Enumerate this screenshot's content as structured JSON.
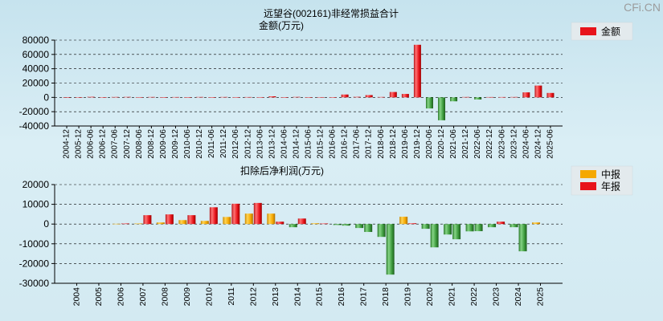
{
  "title": "远望谷(002161)非经常损益合计",
  "watermark": "CFi.CN",
  "chart_data": [
    {
      "type": "bar",
      "title": "金额(万元)",
      "ylim": [
        -40000,
        80000
      ],
      "yticks": [
        80000,
        60000,
        40000,
        20000,
        0,
        -20000,
        -40000
      ],
      "grid": true,
      "legend": "top-right",
      "negative_color": "#2e8b2e",
      "categories": [
        "2004-12",
        "2005-12",
        "2006-06",
        "2006-12",
        "2007-06",
        "2007-12",
        "2008-06",
        "2008-12",
        "2009-06",
        "2009-12",
        "2010-06",
        "2010-12",
        "2011-06",
        "2011-12",
        "2012-06",
        "2012-12",
        "2013-06",
        "2013-12",
        "2014-06",
        "2014-12",
        "2015-06",
        "2015-12",
        "2016-06",
        "2016-12",
        "2017-06",
        "2017-12",
        "2018-06",
        "2018-12",
        "2019-06",
        "2019-12",
        "2020-06",
        "2020-12",
        "2021-06",
        "2021-12",
        "2022-06",
        "2022-12",
        "2023-06",
        "2023-12",
        "2024-06",
        "2024-12",
        "2025-06"
      ],
      "series": [
        {
          "name": "金额",
          "color": "#e8131a",
          "values": [
            100,
            200,
            800,
            300,
            600,
            700,
            400,
            600,
            300,
            500,
            300,
            600,
            300,
            600,
            400,
            500,
            400,
            1500,
            300,
            700,
            300,
            400,
            300,
            4000,
            800,
            3200,
            600,
            7500,
            4800,
            73500,
            -15500,
            -32000,
            -5500,
            600,
            -3000,
            500,
            500,
            600,
            7000,
            16500,
            6200
          ]
        }
      ]
    },
    {
      "type": "bar",
      "title": "扣除后净利润(万元)",
      "ylim": [
        -30000,
        20000
      ],
      "yticks": [
        20000,
        10000,
        0,
        -10000,
        -20000,
        -30000
      ],
      "grid": true,
      "legend": "top-right",
      "negative_color": "#2e8b2e",
      "categories": [
        "2004",
        "2005",
        "2006",
        "2007",
        "2008",
        "2009",
        "2010",
        "2011",
        "2012",
        "2013",
        "2014",
        "2015",
        "2016",
        "2017",
        "2018",
        "2019",
        "2020",
        "2021",
        "2022",
        "2023",
        "2024",
        "2025"
      ],
      "series": [
        {
          "name": "中报",
          "color": "#f5a800",
          "values": [
            null,
            null,
            150,
            300,
            800,
            2000,
            1600,
            3600,
            5300,
            5300,
            -1600,
            400,
            -500,
            -2000,
            -6500,
            3700,
            -2400,
            -5300,
            -3700,
            -1600,
            -1600,
            800
          ]
        },
        {
          "name": "年报",
          "color": "#e8131a",
          "values": [
            null,
            null,
            300,
            4500,
            4900,
            4500,
            8500,
            10300,
            10700,
            1200,
            2800,
            300,
            -800,
            -4000,
            -25600,
            400,
            -11800,
            -7700,
            -3600,
            1200,
            -13800,
            null
          ]
        }
      ]
    }
  ]
}
